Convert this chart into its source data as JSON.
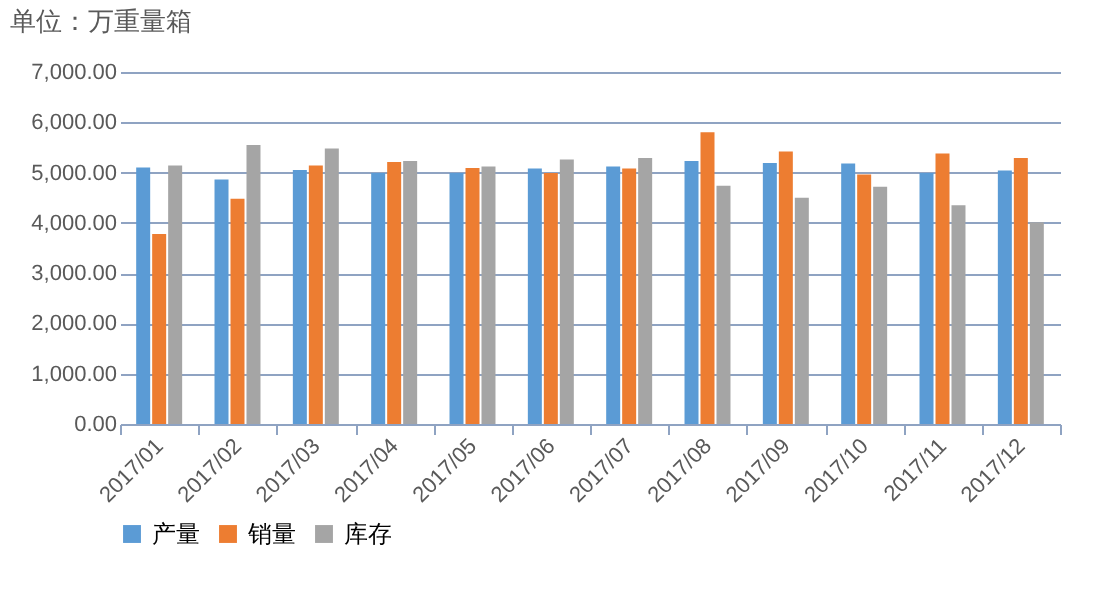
{
  "chart_data": {
    "type": "bar",
    "title": "单位：万重量箱",
    "categories": [
      "2017/01",
      "2017/02",
      "2017/03",
      "2017/04",
      "2017/05",
      "2017/06",
      "2017/07",
      "2017/08",
      "2017/09",
      "2017/10",
      "2017/11",
      "2017/12"
    ],
    "series": [
      {
        "name": "产量",
        "color": "#5b9bd5",
        "values": [
          5100,
          4860,
          5050,
          4990,
          4990,
          5080,
          5120,
          5230,
          5190,
          5180,
          4990,
          5040
        ]
      },
      {
        "name": "销量",
        "color": "#ed7d31",
        "values": [
          3780,
          4480,
          5140,
          5210,
          5090,
          4990,
          5080,
          5800,
          5420,
          4960,
          5380,
          5290
        ]
      },
      {
        "name": "库存",
        "color": "#a5a5a5",
        "values": [
          5140,
          5550,
          5480,
          5230,
          5120,
          5260,
          5290,
          4740,
          4500,
          4720,
          4350,
          4010
        ]
      }
    ],
    "ylim": [
      0,
      7000
    ],
    "yticks": [
      {
        "value": 0,
        "label": "0.00"
      },
      {
        "value": 1000,
        "label": "1,000.00"
      },
      {
        "value": 2000,
        "label": "2,000.00"
      },
      {
        "value": 3000,
        "label": "3,000.00"
      },
      {
        "value": 4000,
        "label": "4,000.00"
      },
      {
        "value": 5000,
        "label": "5,000.00"
      },
      {
        "value": 6000,
        "label": "6,000.00"
      },
      {
        "value": 7000,
        "label": "7,000.00"
      }
    ],
    "grid": "y",
    "legend": "bottom"
  }
}
